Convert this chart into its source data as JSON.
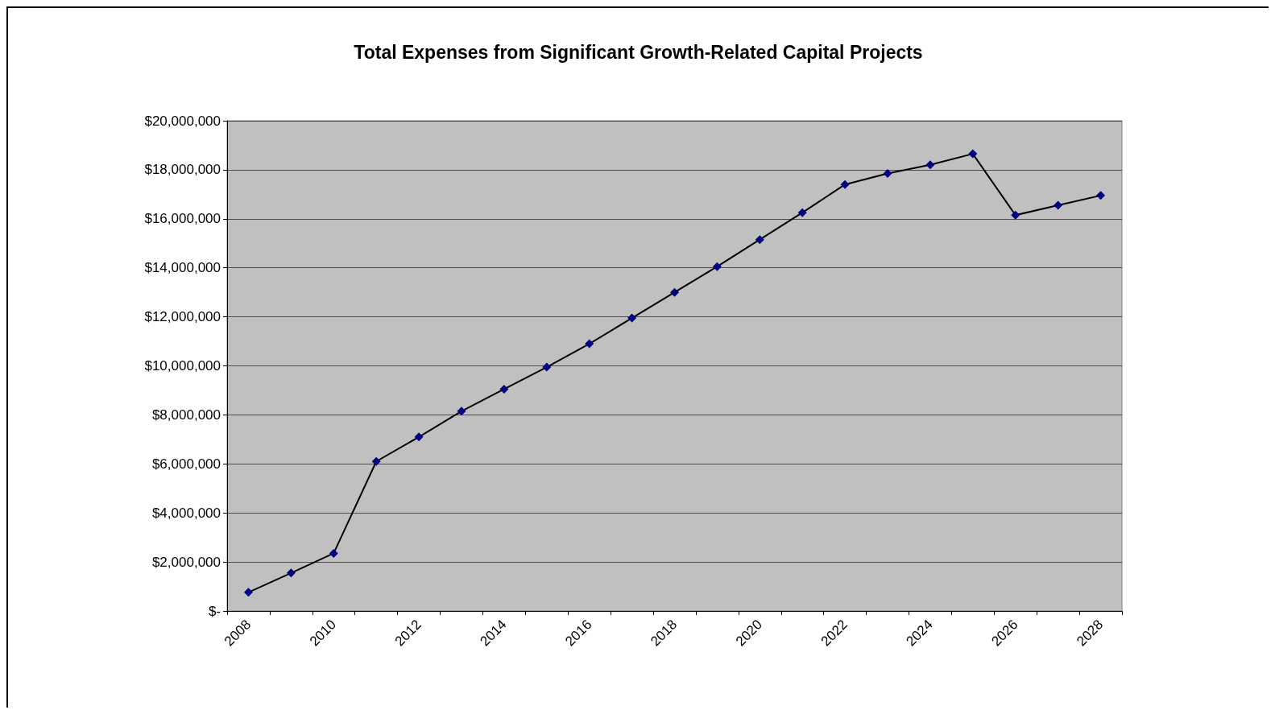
{
  "chart_data": {
    "type": "line",
    "title": "Total Expenses from Significant Growth-Related Capital Projects",
    "categories": [
      "2008",
      null,
      "2010",
      null,
      "2012",
      null,
      "2014",
      null,
      "2016",
      null,
      "2018",
      null,
      "2020",
      null,
      "2022",
      null,
      "2024",
      null,
      "2026",
      null,
      "2028"
    ],
    "series": [
      {
        "color": "#000080",
        "values": [
          760000,
          1550000,
          2350000,
          6100000,
          7100000,
          8150000,
          9050000,
          9950000,
          10900000,
          11950000,
          13000000,
          14050000,
          15150000,
          16250000,
          17400000,
          17850000,
          18200000,
          18650000,
          16150000,
          16550000,
          16950000
        ]
      }
    ],
    "ylim": [
      0,
      20000000
    ],
    "yticks": [
      {
        "value": 0,
        "label": "$-"
      },
      {
        "value": 2000000,
        "label": "$2,000,000"
      },
      {
        "value": 4000000,
        "label": "$4,000,000"
      },
      {
        "value": 6000000,
        "label": "$6,000,000"
      },
      {
        "value": 8000000,
        "label": "$8,000,000"
      },
      {
        "value": 10000000,
        "label": "$10,000,000"
      },
      {
        "value": 12000000,
        "label": "$12,000,000"
      },
      {
        "value": 14000000,
        "label": "$14,000,000"
      },
      {
        "value": 16000000,
        "label": "$16,000,000"
      },
      {
        "value": 18000000,
        "label": "$18,000,000"
      },
      {
        "value": 20000000,
        "label": "$20,000,000"
      }
    ],
    "grid": "y",
    "marker": "diamond",
    "line_style": "solid"
  }
}
